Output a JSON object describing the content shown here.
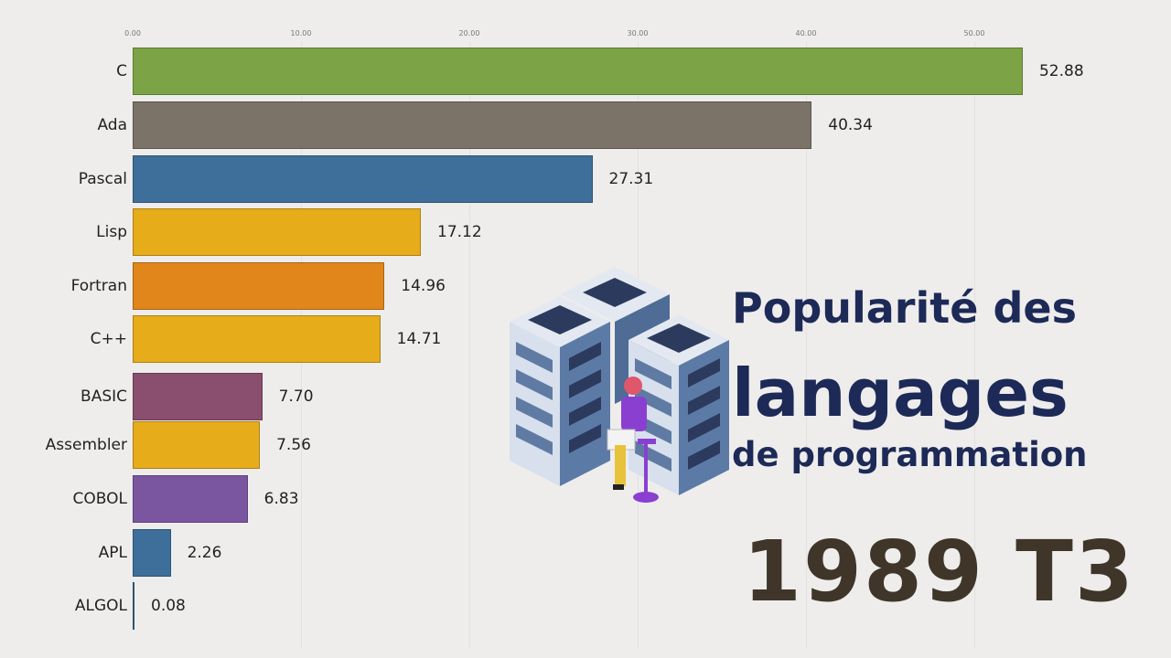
{
  "title": {
    "line1": "Popularité des",
    "line2": "langages",
    "line3": "de programmation"
  },
  "period": "1989 T3",
  "illustration": "server-racks-with-person-icon",
  "chart_data": {
    "type": "bar",
    "orientation": "horizontal",
    "title": "Popularité des langages de programmation",
    "period": "1989 T3",
    "xlim": [
      0,
      55
    ],
    "x_ticks": [
      "0.00",
      "10.00",
      "20.00",
      "30.00",
      "40.00",
      "50.00"
    ],
    "grid": true,
    "categories": [
      "C",
      "Ada",
      "Pascal",
      "Lisp",
      "Fortran",
      "C++",
      "BASIC",
      "Assembler",
      "COBOL",
      "APL",
      "ALGOL"
    ],
    "values": [
      52.88,
      40.34,
      27.31,
      17.12,
      14.96,
      14.71,
      7.7,
      7.56,
      6.83,
      2.26,
      0.08
    ],
    "value_labels": [
      "52.88",
      "40.34",
      "27.31",
      "17.12",
      "14.96",
      "14.71",
      "7.70",
      "7.56",
      "6.83",
      "2.26",
      "0.08"
    ],
    "colors": [
      "#7ca446",
      "#7b7268",
      "#3d6f9a",
      "#e6ac1a",
      "#e1861a",
      "#e6ac1a",
      "#8a4e6e",
      "#e6ac1a",
      "#7b56a0",
      "#3d6f9a",
      "#3d6f9a"
    ]
  },
  "rows": [
    {
      "label": "C",
      "value": "52.88"
    },
    {
      "label": "Ada",
      "value": "40.34"
    },
    {
      "label": "Pascal",
      "value": "27.31"
    },
    {
      "label": "Lisp",
      "value": "17.12"
    },
    {
      "label": "Fortran",
      "value": "14.96"
    },
    {
      "label": "C++",
      "value": "14.71"
    },
    {
      "label": "BASIC",
      "value": "7.70"
    },
    {
      "label": "Assembler",
      "value": "7.56"
    },
    {
      "label": "COBOL",
      "value": "6.83"
    },
    {
      "label": "APL",
      "value": "2.26"
    },
    {
      "label": "ALGOL",
      "value": "0.08"
    }
  ],
  "ticks": [
    "0.00",
    "10.00",
    "20.00",
    "30.00",
    "40.00",
    "50.00"
  ]
}
